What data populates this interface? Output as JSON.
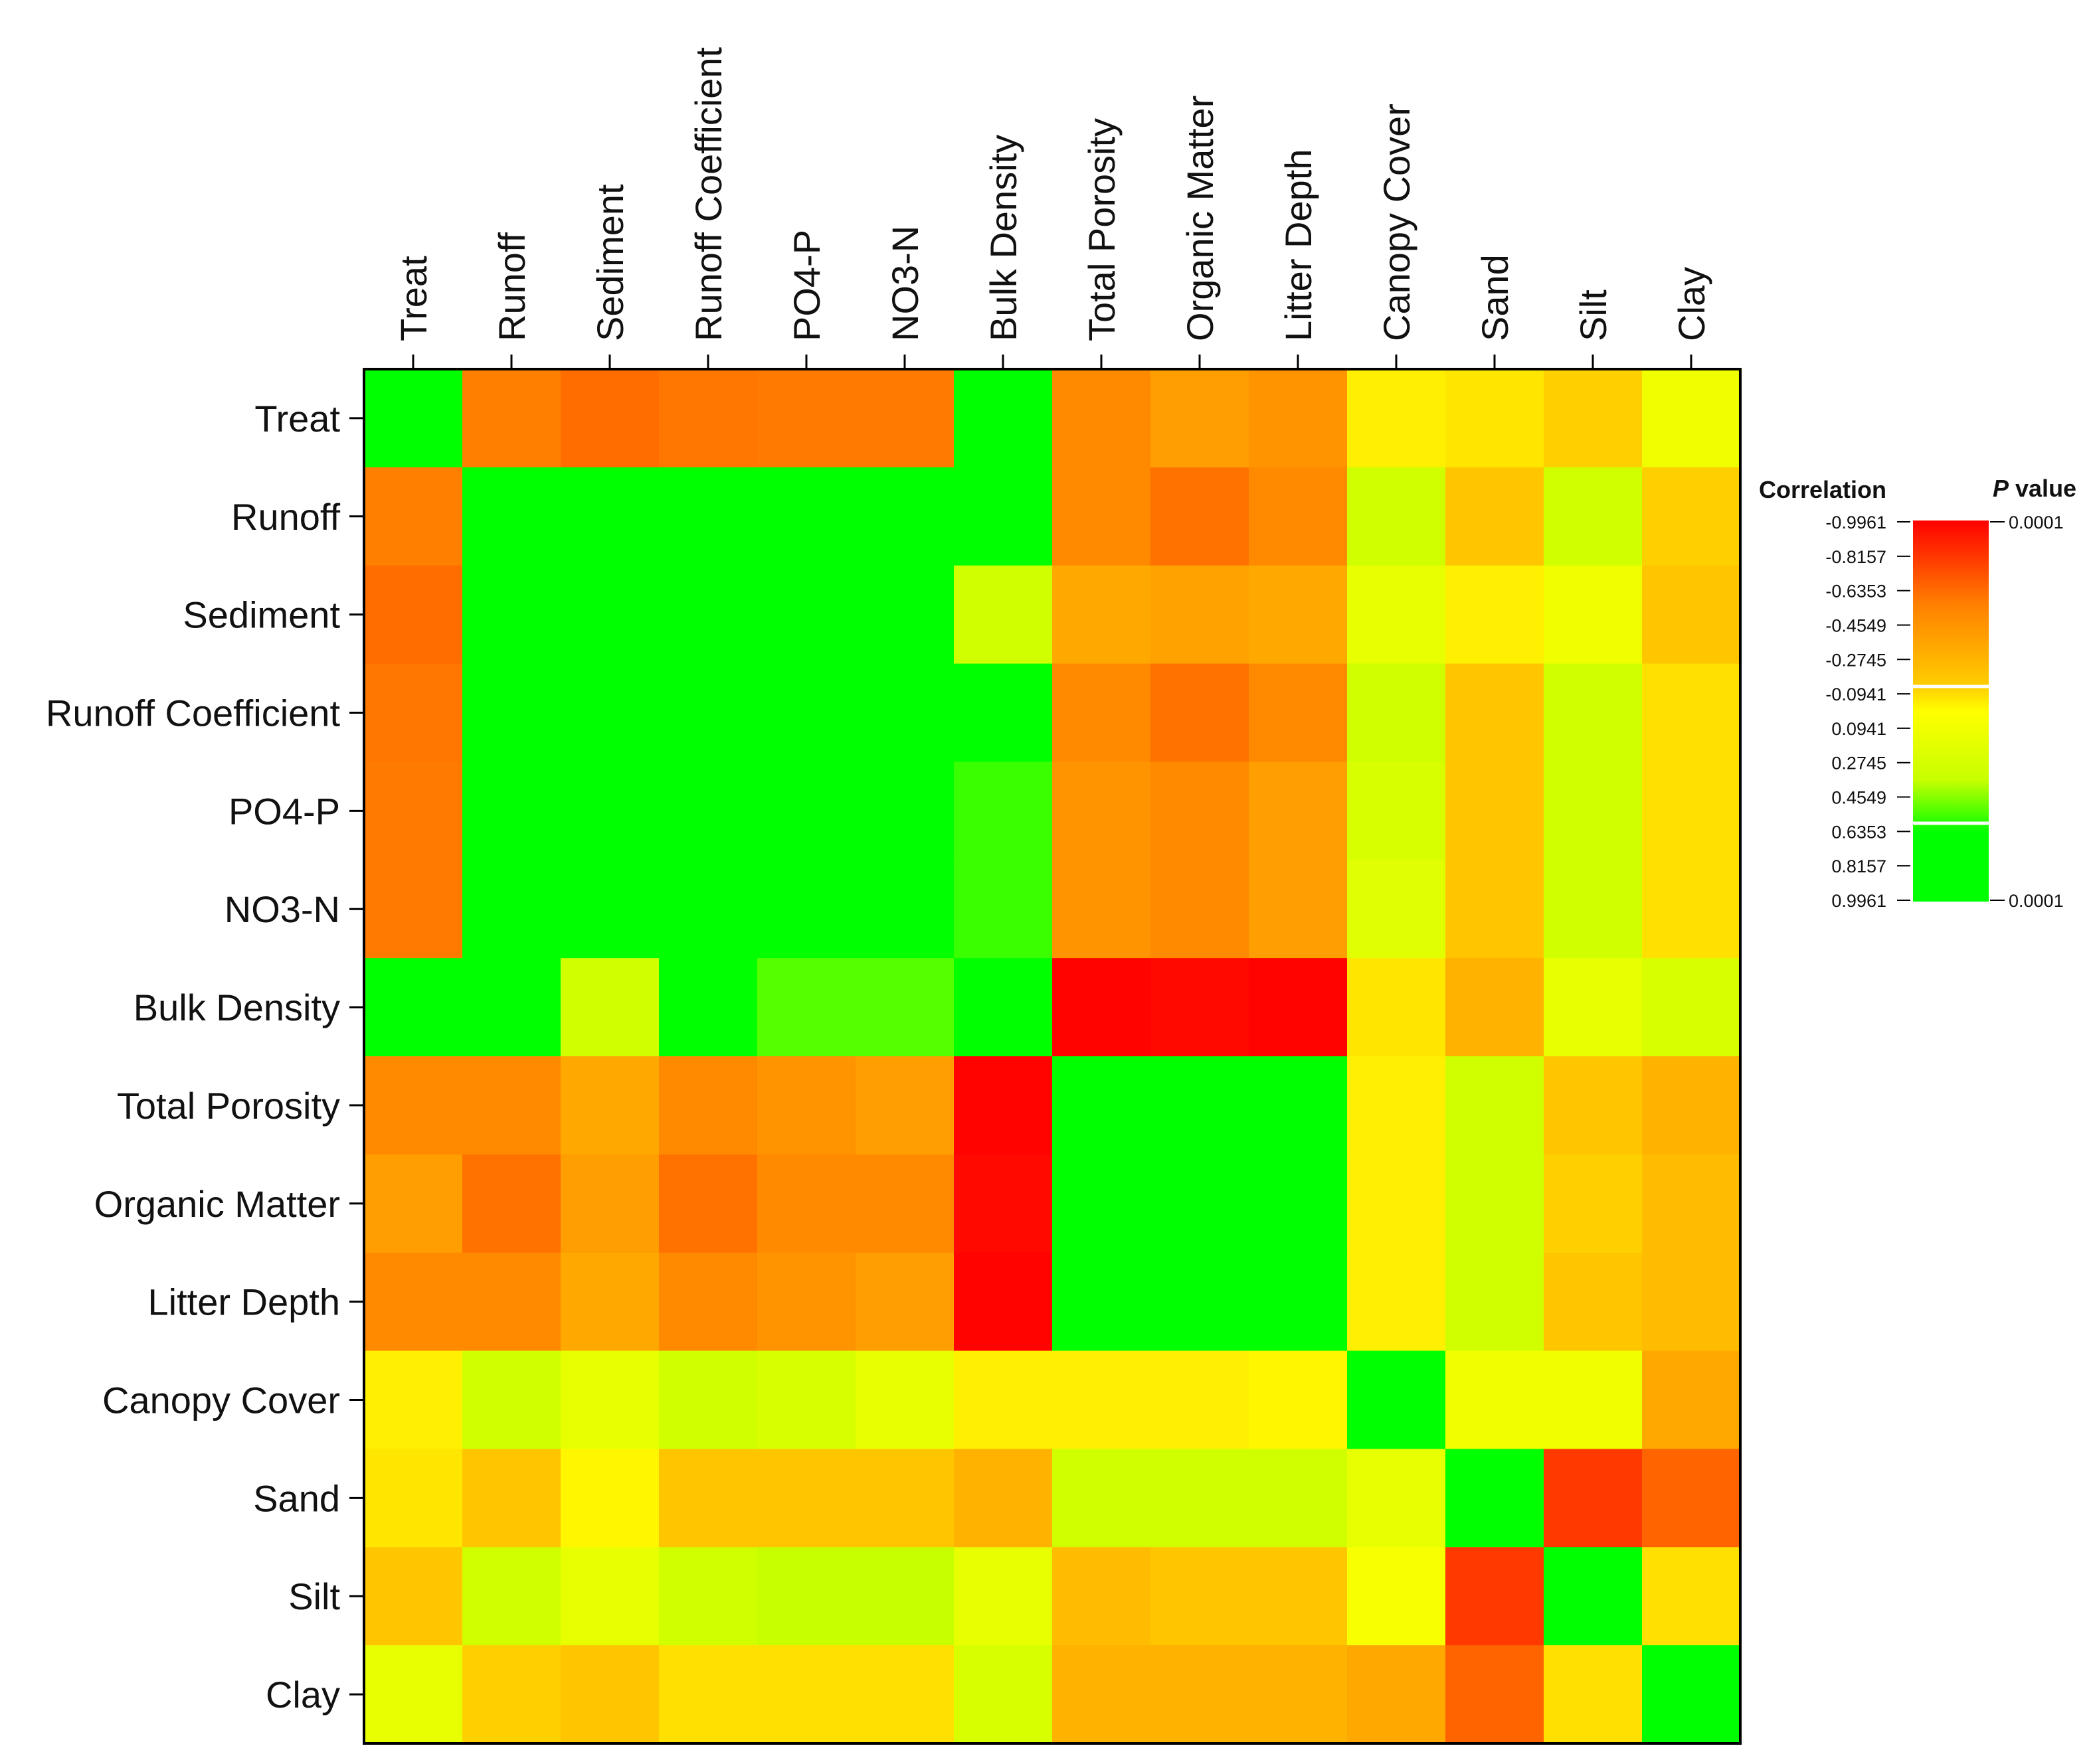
{
  "chart_data": {
    "type": "heatmap",
    "title": "",
    "xlabel": "",
    "ylabel": "",
    "x_axis_position": "top",
    "variables": [
      "Treat",
      "Runoff",
      "Sediment",
      "Runoff Coefficient",
      "PO4-P",
      "NO3-N",
      "Bulk Density",
      "Total Porosity",
      "Organic Matter",
      "Litter Depth",
      "Canopy Cover",
      "Sand",
      "Silt",
      "Clay"
    ],
    "matrix": [
      [
        1.0,
        -0.55,
        -0.62,
        -0.58,
        -0.57,
        -0.57,
        0.75,
        -0.5,
        -0.4,
        -0.45,
        -0.05,
        -0.08,
        -0.15,
        0.1
      ],
      [
        -0.55,
        1.0,
        0.99,
        0.99,
        0.99,
        0.99,
        0.8,
        -0.5,
        -0.6,
        -0.5,
        0.3,
        -0.2,
        0.3,
        -0.15
      ],
      [
        -0.62,
        0.99,
        1.0,
        0.99,
        0.99,
        0.99,
        0.3,
        -0.35,
        -0.38,
        -0.35,
        0.15,
        -0.05,
        0.1,
        -0.2
      ],
      [
        -0.58,
        0.99,
        0.99,
        1.0,
        0.99,
        0.99,
        0.8,
        -0.5,
        -0.6,
        -0.5,
        0.3,
        -0.2,
        0.3,
        -0.1
      ],
      [
        -0.57,
        0.99,
        0.99,
        0.99,
        1.0,
        0.99,
        0.6,
        -0.45,
        -0.5,
        -0.4,
        0.25,
        -0.2,
        0.3,
        -0.1
      ],
      [
        -0.57,
        0.99,
        0.99,
        0.99,
        0.99,
        1.0,
        0.6,
        -0.45,
        -0.5,
        -0.4,
        0.2,
        -0.2,
        0.3,
        -0.1
      ],
      [
        0.75,
        0.75,
        0.3,
        0.8,
        0.55,
        0.55,
        1.0,
        -0.99,
        -0.97,
        -0.99,
        -0.08,
        -0.3,
        0.15,
        0.25
      ],
      [
        -0.5,
        -0.5,
        -0.35,
        -0.5,
        -0.45,
        -0.4,
        -0.99,
        1.0,
        0.99,
        0.99,
        -0.05,
        0.3,
        -0.2,
        -0.3
      ],
      [
        -0.4,
        -0.6,
        -0.4,
        -0.6,
        -0.5,
        -0.5,
        -0.97,
        0.99,
        1.0,
        0.99,
        -0.05,
        0.3,
        -0.15,
        -0.25
      ],
      [
        -0.5,
        -0.5,
        -0.35,
        -0.5,
        -0.45,
        -0.4,
        -0.99,
        0.99,
        0.99,
        1.0,
        -0.05,
        0.3,
        -0.2,
        -0.25
      ],
      [
        -0.05,
        0.3,
        0.15,
        0.3,
        0.25,
        0.15,
        -0.05,
        -0.05,
        -0.05,
        -0.03,
        1.0,
        0.1,
        0.1,
        -0.35
      ],
      [
        -0.08,
        -0.2,
        -0.03,
        -0.2,
        -0.2,
        -0.2,
        -0.3,
        0.3,
        0.3,
        0.3,
        0.15,
        1.0,
        -0.8,
        -0.65
      ],
      [
        -0.2,
        0.3,
        0.15,
        0.3,
        0.35,
        0.35,
        0.15,
        -0.25,
        -0.2,
        -0.2,
        0.05,
        -0.8,
        1.0,
        -0.1
      ],
      [
        0.15,
        -0.15,
        -0.2,
        -0.1,
        -0.1,
        -0.1,
        0.25,
        -0.3,
        -0.3,
        -0.3,
        -0.35,
        -0.65,
        -0.1,
        1.0
      ]
    ],
    "value_range": [
      -0.9961,
      0.9961
    ],
    "legend": {
      "placement": "right",
      "correlation_title": "Correlation",
      "pvalue_title": "P value",
      "pvalue_title_italic_part": "P",
      "pvalue_title_rest": " value",
      "correlation_ticks": [
        "-0.9961",
        "-0.8157",
        "-0.6353",
        "-0.4549",
        "-0.2745",
        "-0.0941",
        "0.0941",
        "0.2745",
        "0.4549",
        "0.6353",
        "0.8157",
        "0.9961"
      ],
      "pvalue_top": "0.0001",
      "pvalue_bottom": "0.0001"
    },
    "colors": {
      "negative_strong": "#ff0000",
      "negative_mid": "#ff8000",
      "negative_weak": "#ffd000",
      "neutral": "#ffff00",
      "positive_weak": "#c8ff00",
      "positive_strong": "#00ff00",
      "frame": "#000000",
      "separator": "#ffffff"
    }
  }
}
